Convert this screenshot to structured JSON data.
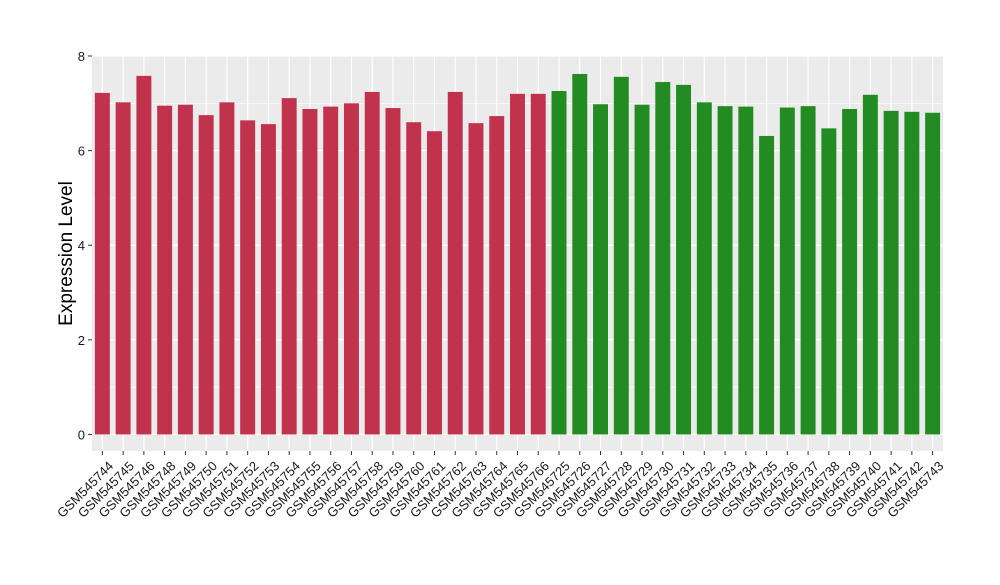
{
  "chart_data": {
    "type": "bar",
    "title": "",
    "xlabel": "",
    "ylabel": "Expression Level",
    "ylim": [
      -0.35,
      8.0
    ],
    "yticks": [
      0,
      2,
      4,
      6,
      8
    ],
    "grid": true,
    "legend": "none",
    "colors": {
      "group_a": "#c1334c",
      "group_b": "#228b22",
      "panel": "#ebebeb",
      "grid": "#ffffff"
    },
    "categories": [
      "GSM545744",
      "GSM545745",
      "GSM545746",
      "GSM545748",
      "GSM545749",
      "GSM545750",
      "GSM545751",
      "GSM545752",
      "GSM545753",
      "GSM545754",
      "GSM545755",
      "GSM545756",
      "GSM545757",
      "GSM545758",
      "GSM545759",
      "GSM545760",
      "GSM545761",
      "GSM545762",
      "GSM545763",
      "GSM545764",
      "GSM545765",
      "GSM545766",
      "GSM545725",
      "GSM545726",
      "GSM545727",
      "GSM545728",
      "GSM545729",
      "GSM545730",
      "GSM545731",
      "GSM545732",
      "GSM545733",
      "GSM545734",
      "GSM545735",
      "GSM545736",
      "GSM545737",
      "GSM545738",
      "GSM545739",
      "GSM545740",
      "GSM545741",
      "GSM545742",
      "GSM545743"
    ],
    "values": [
      7.22,
      7.02,
      7.58,
      6.95,
      6.97,
      6.75,
      7.02,
      6.64,
      6.56,
      7.11,
      6.88,
      6.93,
      7.0,
      7.24,
      6.9,
      6.6,
      6.41,
      7.24,
      6.58,
      6.73,
      7.2,
      7.2,
      7.26,
      7.62,
      6.98,
      7.56,
      6.97,
      7.45,
      7.39,
      7.02,
      6.94,
      6.93,
      6.31,
      6.91,
      6.94,
      6.47,
      6.88,
      7.18,
      6.84,
      6.82,
      6.8
    ],
    "groups": [
      "a",
      "a",
      "a",
      "a",
      "a",
      "a",
      "a",
      "a",
      "a",
      "a",
      "a",
      "a",
      "a",
      "a",
      "a",
      "a",
      "a",
      "a",
      "a",
      "a",
      "a",
      "a",
      "b",
      "b",
      "b",
      "b",
      "b",
      "b",
      "b",
      "b",
      "b",
      "b",
      "b",
      "b",
      "b",
      "b",
      "b",
      "b",
      "b",
      "b",
      "b"
    ]
  }
}
